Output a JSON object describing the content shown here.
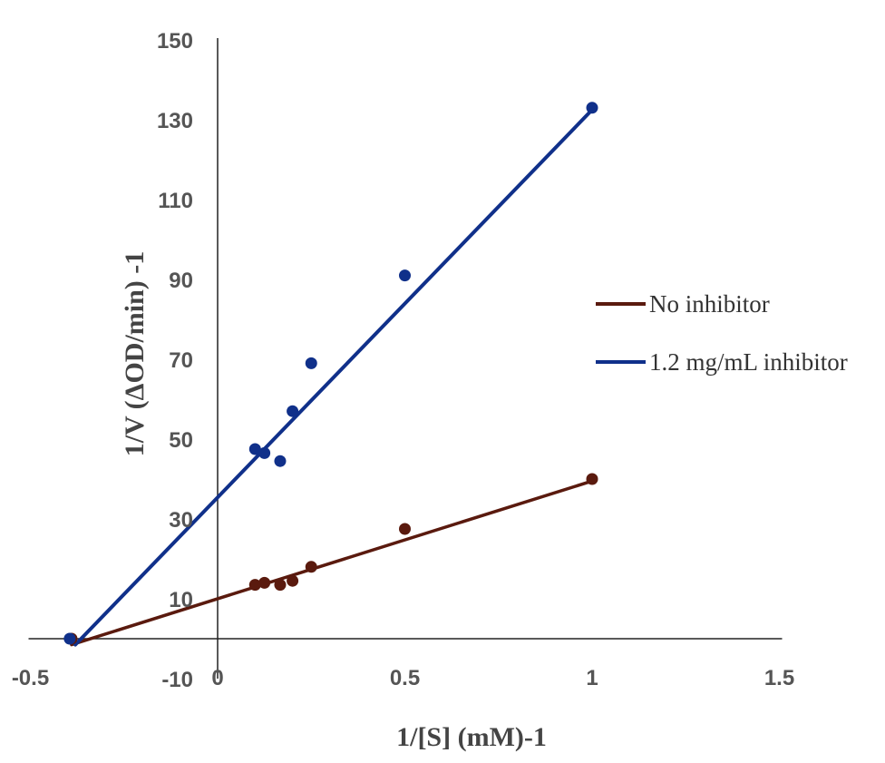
{
  "chart_data": {
    "type": "scatter",
    "xlabel": "1/[S] (mM)-1",
    "ylabel": "1/V (ΔOD/min) -1",
    "xlim": [
      -0.5,
      1.5
    ],
    "ylim": [
      -10,
      150
    ],
    "x_ticks": [
      "-0.5",
      "0",
      "0.5",
      "1",
      "1.5"
    ],
    "y_ticks": [
      "-10",
      "10",
      "30",
      "50",
      "70",
      "90",
      "110",
      "130",
      "150"
    ],
    "legend_position": "right",
    "series": [
      {
        "name": "No inhibitor",
        "color": "#5a1a0e",
        "points": [
          {
            "x": -0.39,
            "y": 0
          },
          {
            "x": 0.1,
            "y": 13.5
          },
          {
            "x": 0.125,
            "y": 14
          },
          {
            "x": 0.167,
            "y": 13.5
          },
          {
            "x": 0.2,
            "y": 14.5
          },
          {
            "x": 0.25,
            "y": 18
          },
          {
            "x": 0.5,
            "y": 27.5
          },
          {
            "x": 1.0,
            "y": 40
          }
        ],
        "trendline": {
          "x": [
            -0.39,
            1.0
          ],
          "y": [
            -1.5,
            39.5
          ]
        }
      },
      {
        "name": "1.2 mg/mL inhibitor",
        "color": "#10308a",
        "points": [
          {
            "x": -0.395,
            "y": 0
          },
          {
            "x": 0.1,
            "y": 47.5
          },
          {
            "x": 0.125,
            "y": 46.5
          },
          {
            "x": 0.167,
            "y": 44.5
          },
          {
            "x": 0.2,
            "y": 57
          },
          {
            "x": 0.25,
            "y": 69
          },
          {
            "x": 0.5,
            "y": 91
          },
          {
            "x": 1.0,
            "y": 133
          }
        ],
        "trendline": {
          "x": [
            -0.38,
            1.0
          ],
          "y": [
            -1.5,
            132.5
          ]
        }
      }
    ]
  }
}
